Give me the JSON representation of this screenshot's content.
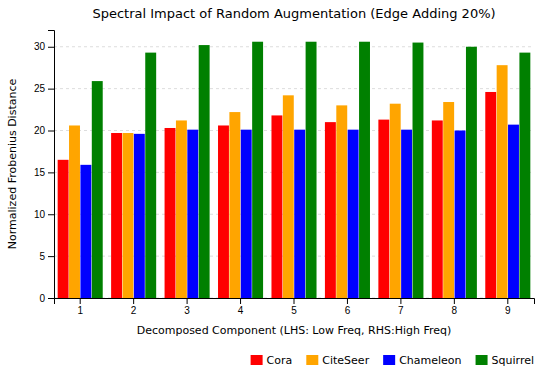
{
  "chart_data": {
    "type": "bar",
    "title": "Spectral Impact of Random Augmentation (Edge Adding 20%)",
    "xlabel": "Decomposed Component (LHS: Low Freq, RHS:High Freq)",
    "ylabel": "Normalized Frobenius Distance",
    "categories": [
      1,
      2,
      3,
      4,
      5,
      6,
      7,
      8,
      9
    ],
    "series": [
      {
        "name": "Cora",
        "color": "#ff0000",
        "values": [
          16.5,
          19.7,
          20.3,
          20.6,
          21.8,
          21.0,
          21.3,
          21.2,
          24.6
        ]
      },
      {
        "name": "CiteSeer",
        "color": "#ffa500",
        "values": [
          20.6,
          19.7,
          21.2,
          22.2,
          24.2,
          23.0,
          23.2,
          23.4,
          27.8
        ]
      },
      {
        "name": "Chameleon",
        "color": "#0000ff",
        "values": [
          15.9,
          19.6,
          20.1,
          20.1,
          20.1,
          20.1,
          20.1,
          20.0,
          20.7
        ]
      },
      {
        "name": "Squirrel",
        "color": "#008000",
        "values": [
          25.9,
          29.3,
          30.2,
          30.6,
          30.6,
          30.6,
          30.5,
          30.0,
          29.3
        ]
      }
    ],
    "ylim": [
      0,
      32
    ],
    "yticks": [
      0,
      5,
      10,
      15,
      20,
      25,
      30
    ],
    "grid": true,
    "legend": "lower right"
  }
}
